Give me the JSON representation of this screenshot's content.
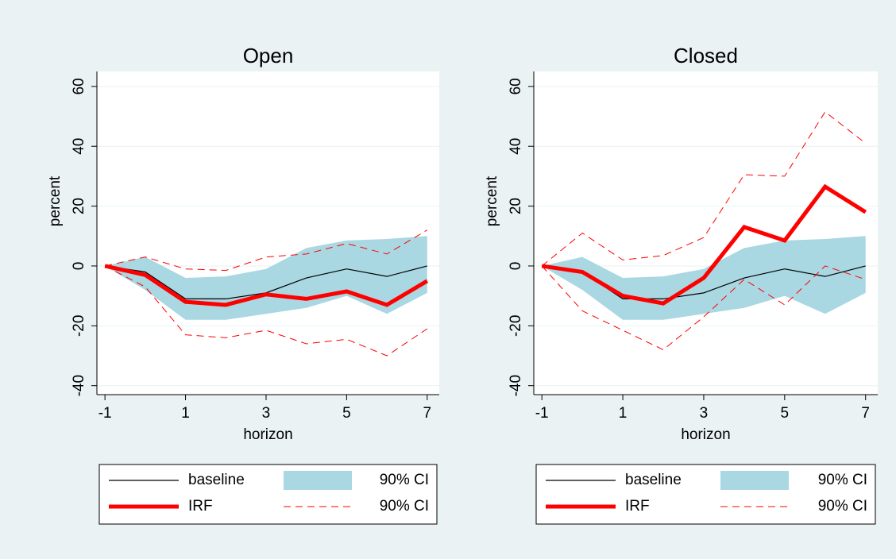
{
  "chart_data": [
    {
      "type": "line",
      "title": "Open",
      "xlabel": "horizon",
      "ylabel": "percent",
      "x": [
        -1,
        0,
        1,
        2,
        3,
        4,
        5,
        6,
        7
      ],
      "xlim": [
        -1.2,
        7.3
      ],
      "xticks": [
        -1,
        1,
        3,
        5,
        7
      ],
      "ylim": [
        -43,
        65
      ],
      "yticks": [
        -40,
        -20,
        0,
        20,
        40,
        60
      ],
      "grid": true,
      "series": [
        {
          "name": "baseline",
          "style": "thin",
          "color": "#000000",
          "values": [
            0,
            -2,
            -11,
            -11,
            -9,
            -4,
            -1,
            -3.5,
            0
          ]
        },
        {
          "name": "90% CI",
          "style": "band",
          "color": "#a9d7e2",
          "lower": [
            0,
            -8,
            -18,
            -18,
            -16,
            -14,
            -10,
            -16,
            -9
          ],
          "upper": [
            0,
            3,
            -4,
            -3.5,
            -1,
            6,
            8.5,
            9,
            10
          ]
        },
        {
          "name": "IRF",
          "style": "thick",
          "color": "#ff0000",
          "values": [
            0,
            -3,
            -12,
            -13,
            -9.5,
            -11,
            -8.5,
            -13,
            -5
          ]
        },
        {
          "name": "90% CI",
          "style": "dashed",
          "color": "#ff0000",
          "lower": [
            0,
            -7,
            -23,
            -24,
            -21.5,
            -26,
            -24.5,
            -30,
            -21
          ],
          "upper": [
            0,
            3,
            -1,
            -1.5,
            3,
            4,
            7.5,
            4,
            12
          ]
        }
      ]
    },
    {
      "type": "line",
      "title": "Closed",
      "xlabel": "horizon",
      "ylabel": "percent",
      "x": [
        -1,
        0,
        1,
        2,
        3,
        4,
        5,
        6,
        7
      ],
      "xlim": [
        -1.2,
        7.3
      ],
      "xticks": [
        -1,
        1,
        3,
        5,
        7
      ],
      "ylim": [
        -43,
        65
      ],
      "yticks": [
        -40,
        -20,
        0,
        20,
        40,
        60
      ],
      "grid": true,
      "series": [
        {
          "name": "baseline",
          "style": "thin",
          "color": "#000000",
          "values": [
            0,
            -2,
            -11,
            -11,
            -9,
            -4,
            -1,
            -3.5,
            0
          ]
        },
        {
          "name": "90% CI",
          "style": "band",
          "color": "#a9d7e2",
          "lower": [
            0,
            -8,
            -18,
            -18,
            -16,
            -14,
            -10,
            -16,
            -9
          ],
          "upper": [
            0,
            3,
            -4,
            -3.5,
            -1,
            6,
            8.5,
            9,
            10
          ]
        },
        {
          "name": "IRF",
          "style": "thick",
          "color": "#ff0000",
          "values": [
            0,
            -2,
            -10,
            -12.5,
            -4,
            13,
            8.5,
            26.5,
            18
          ]
        },
        {
          "name": "90% CI",
          "style": "dashed",
          "color": "#ff0000",
          "lower": [
            0,
            -15,
            -21.5,
            -28,
            -17,
            -4.5,
            -13,
            0,
            -4.5
          ],
          "upper": [
            0,
            11,
            2,
            3.5,
            9.5,
            30.5,
            30,
            51.5,
            41
          ]
        }
      ]
    }
  ]
}
